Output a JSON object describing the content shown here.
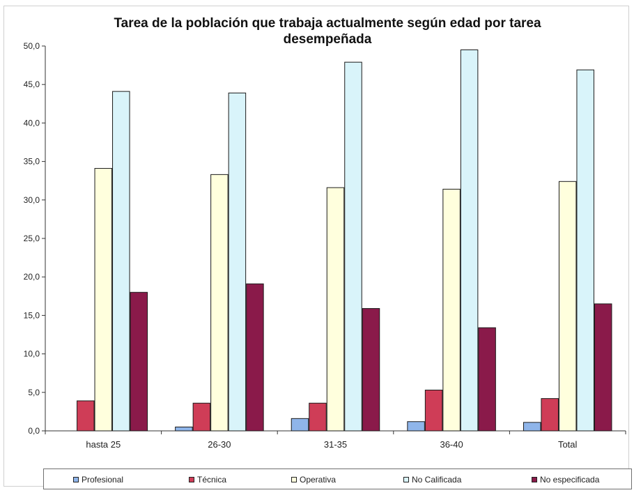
{
  "chart_data": {
    "type": "bar",
    "title": "Tarea de la población que trabaja actualmente según edad por tarea desempeñada",
    "categories": [
      "hasta 25",
      "26-30",
      "31-35",
      "36-40",
      "Total"
    ],
    "ylim": [
      0,
      50
    ],
    "yticks": [
      "0,0",
      "5,0",
      "10,0",
      "15,0",
      "20,0",
      "25,0",
      "30,0",
      "35,0",
      "40,0",
      "45,0",
      "50,0"
    ],
    "ytick_values": [
      0,
      5,
      10,
      15,
      20,
      25,
      30,
      35,
      40,
      45,
      50
    ],
    "grid": false,
    "legend_position": "bottom",
    "series": [
      {
        "name": "Profesional",
        "color": "#8fb5ea",
        "values": [
          0.0,
          0.5,
          1.6,
          1.2,
          1.1
        ]
      },
      {
        "name": "Técnica",
        "color": "#cf3d57",
        "values": [
          3.9,
          3.6,
          3.6,
          5.3,
          4.2
        ]
      },
      {
        "name": "Operativa",
        "color": "#ffffdd",
        "values": [
          34.1,
          33.3,
          31.6,
          31.4,
          32.4
        ]
      },
      {
        "name": "No Calificada",
        "color": "#d9f4fa",
        "values": [
          44.1,
          43.9,
          47.9,
          49.5,
          46.9
        ]
      },
      {
        "name": "No especificada",
        "color": "#8a1a4a",
        "values": [
          18.0,
          19.1,
          15.9,
          13.4,
          16.5
        ]
      }
    ]
  }
}
